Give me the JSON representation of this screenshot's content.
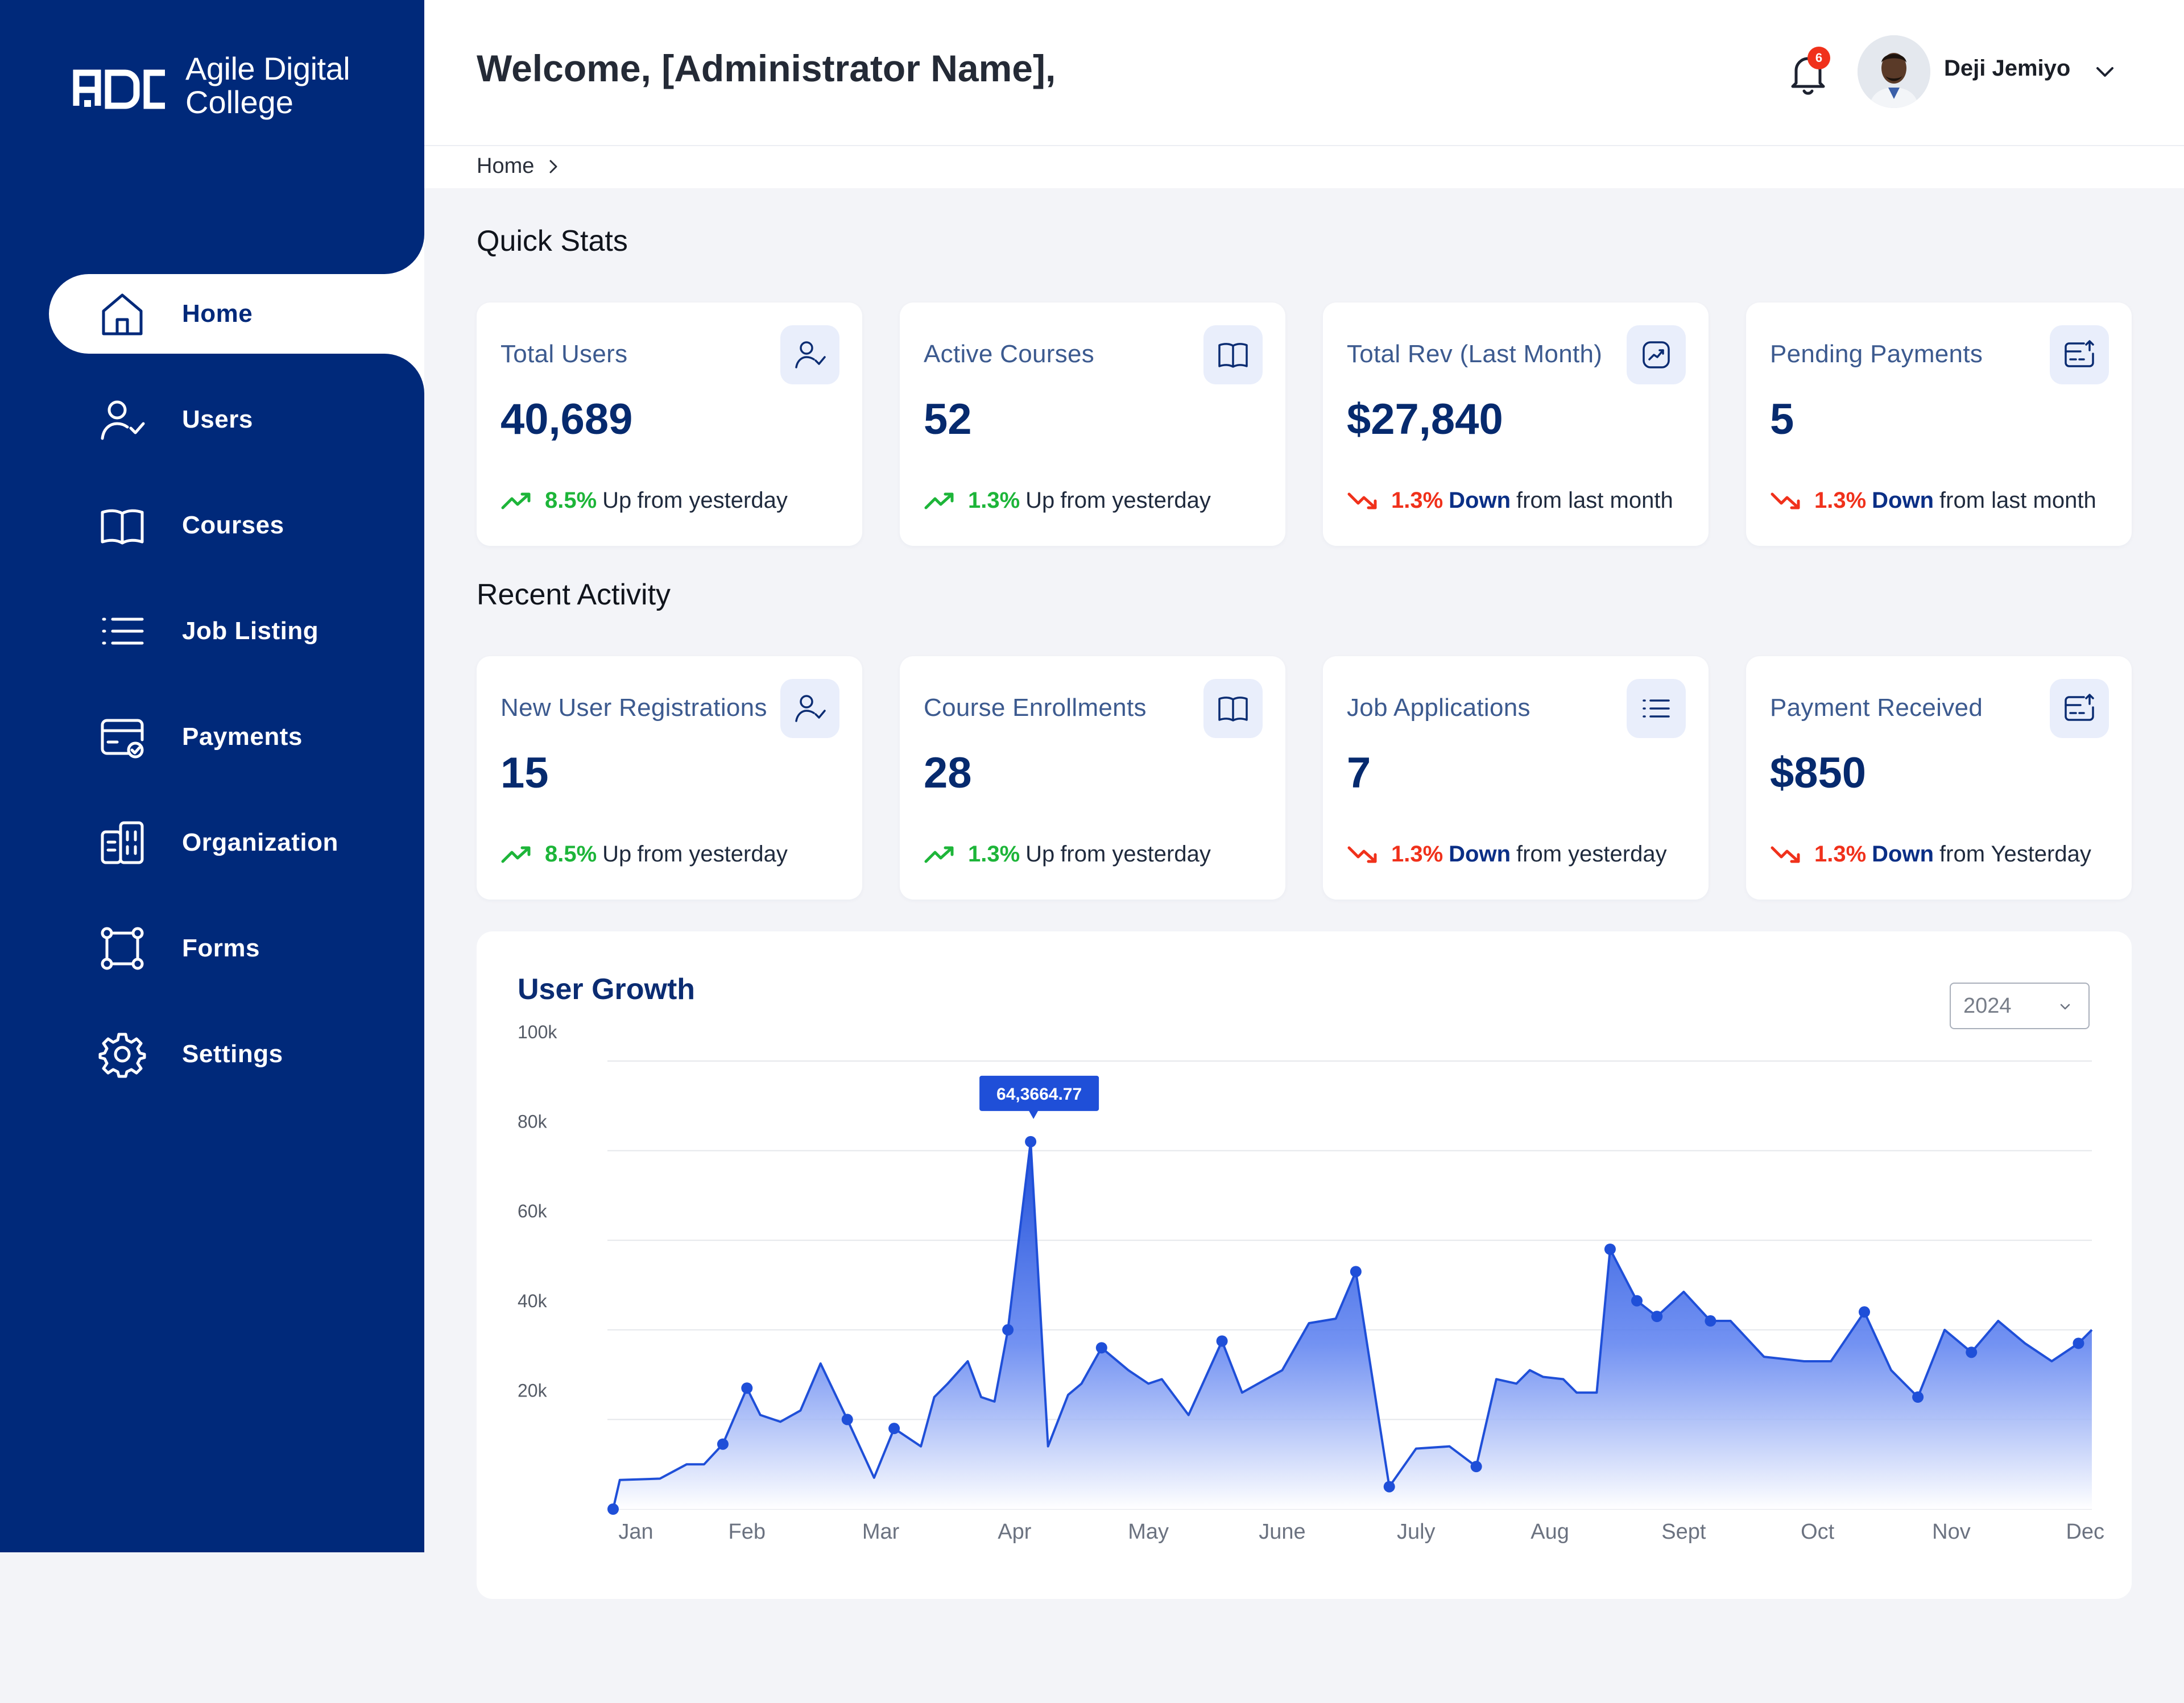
{
  "brand": {
    "mark": "ADC",
    "line1": "Agile Digital",
    "line2": "College"
  },
  "sidebar": {
    "items": [
      {
        "label": "Home",
        "icon": "home-icon",
        "active": true
      },
      {
        "label": "Users",
        "icon": "user-check-icon"
      },
      {
        "label": "Courses",
        "icon": "book-icon"
      },
      {
        "label": "Job Listing",
        "icon": "list-icon"
      },
      {
        "label": "Payments",
        "icon": "payment-card-icon"
      },
      {
        "label": "Organization",
        "icon": "building-icon"
      },
      {
        "label": "Forms",
        "icon": "forms-icon"
      },
      {
        "label": "Settings",
        "icon": "gear-icon"
      }
    ]
  },
  "header": {
    "welcome": "Welcome, [Administrator Name],",
    "notification_count": "6",
    "user_name": "Deji Jemiyo"
  },
  "breadcrumb": {
    "home": "Home"
  },
  "quick_stats": {
    "title": "Quick Stats",
    "cards": [
      {
        "label": "Total Users",
        "value": "40,689",
        "icon": "user-check-icon",
        "trend": "up",
        "pct": "8.5%",
        "dir_word": "Up",
        "suffix": "from yesterday"
      },
      {
        "label": "Active Courses",
        "value": "52",
        "icon": "book-icon",
        "trend": "up",
        "pct": "1.3%",
        "dir_word": "Up",
        "suffix": "from yesterday"
      },
      {
        "label": "Total Rev (Last Month)",
        "value": "$27,840",
        "icon": "chart-line-icon",
        "trend": "down",
        "pct": "1.3%",
        "dir_word": "Down",
        "suffix": "from last month"
      },
      {
        "label": "Pending Payments",
        "value": "5",
        "icon": "payment-upload-icon",
        "trend": "down",
        "pct": "1.3%",
        "dir_word": "Down",
        "suffix": "from last month"
      }
    ]
  },
  "recent_activity": {
    "title": "Recent Activity",
    "cards": [
      {
        "label": "New User Registrations",
        "value": "15",
        "icon": "user-check-icon",
        "trend": "up",
        "pct": "8.5%",
        "dir_word": "Up",
        "suffix": "from yesterday"
      },
      {
        "label": "Course Enrollments",
        "value": "28",
        "icon": "book-icon",
        "trend": "up",
        "pct": "1.3%",
        "dir_word": "Up",
        "suffix": "from yesterday"
      },
      {
        "label": "Job Applications",
        "value": "7",
        "icon": "list-icon",
        "trend": "down",
        "pct": "1.3%",
        "dir_word": "Down",
        "suffix": "from yesterday"
      },
      {
        "label": "Payment Received",
        "value": "$850",
        "icon": "payment-upload-icon",
        "trend": "down",
        "pct": "1.3%",
        "dir_word": "Down",
        "suffix": "from Yesterday"
      }
    ]
  },
  "user_growth": {
    "title": "User Growth",
    "year_selected": "2024"
  },
  "colors": {
    "sidebar": "#00297a",
    "accent": "#1f4fd8",
    "up": "#1db539",
    "down": "#f0311b"
  },
  "chart_data": {
    "type": "area",
    "title": "User Growth",
    "x_labels": [
      "Jan",
      "Feb",
      "Mar",
      "Apr",
      "May",
      "June",
      "July",
      "Aug",
      "Sept",
      "Oct",
      "Nov",
      "Dec"
    ],
    "y_ticks": [
      "20k",
      "40k",
      "60k",
      "80k",
      "100k"
    ],
    "ylim": [
      0,
      100000
    ],
    "tooltip": "64,3664.77",
    "series": [
      {
        "points": [
          [
            0.0,
            0
          ],
          [
            0.05,
            6500
          ],
          [
            0.35,
            6800
          ],
          [
            0.55,
            10000
          ],
          [
            0.68,
            10000
          ],
          [
            0.82,
            14500
          ],
          [
            1.0,
            27000
          ],
          [
            1.1,
            21000
          ],
          [
            1.25,
            19500
          ],
          [
            1.4,
            22000
          ],
          [
            1.55,
            32500
          ],
          [
            1.75,
            20000
          ],
          [
            1.95,
            7000
          ],
          [
            2.1,
            18000
          ],
          [
            2.3,
            14000
          ],
          [
            2.4,
            25000
          ],
          [
            2.5,
            28000
          ],
          [
            2.65,
            33000
          ],
          [
            2.75,
            25000
          ],
          [
            2.85,
            24000
          ],
          [
            2.95,
            40000
          ],
          [
            3.12,
            82000
          ],
          [
            3.25,
            14000
          ],
          [
            3.4,
            25500
          ],
          [
            3.5,
            28000
          ],
          [
            3.65,
            36000
          ],
          [
            3.85,
            31000
          ],
          [
            4.0,
            28000
          ],
          [
            4.1,
            29000
          ],
          [
            4.3,
            21000
          ],
          [
            4.55,
            37500
          ],
          [
            4.7,
            26000
          ],
          [
            4.85,
            28500
          ],
          [
            5.0,
            31000
          ],
          [
            5.2,
            41500
          ],
          [
            5.4,
            42500
          ],
          [
            5.55,
            53000
          ],
          [
            5.8,
            5000
          ],
          [
            6.0,
            13500
          ],
          [
            6.25,
            14000
          ],
          [
            6.45,
            9500
          ],
          [
            6.6,
            29000
          ],
          [
            6.75,
            28000
          ],
          [
            6.85,
            31000
          ],
          [
            6.95,
            29500
          ],
          [
            7.1,
            29000
          ],
          [
            7.2,
            26000
          ],
          [
            7.35,
            26000
          ],
          [
            7.45,
            58000
          ],
          [
            7.65,
            46500
          ],
          [
            7.8,
            43000
          ],
          [
            8.0,
            48500
          ],
          [
            8.2,
            42000
          ],
          [
            8.35,
            42000
          ],
          [
            8.6,
            34000
          ],
          [
            8.9,
            33000
          ],
          [
            9.1,
            33000
          ],
          [
            9.35,
            44000
          ],
          [
            9.55,
            31000
          ],
          [
            9.75,
            25000
          ],
          [
            9.95,
            40000
          ],
          [
            10.15,
            35000
          ],
          [
            10.35,
            42000
          ],
          [
            10.55,
            37000
          ],
          [
            10.75,
            33000
          ],
          [
            10.95,
            37000
          ],
          [
            11.05,
            40000
          ]
        ]
      }
    ]
  }
}
